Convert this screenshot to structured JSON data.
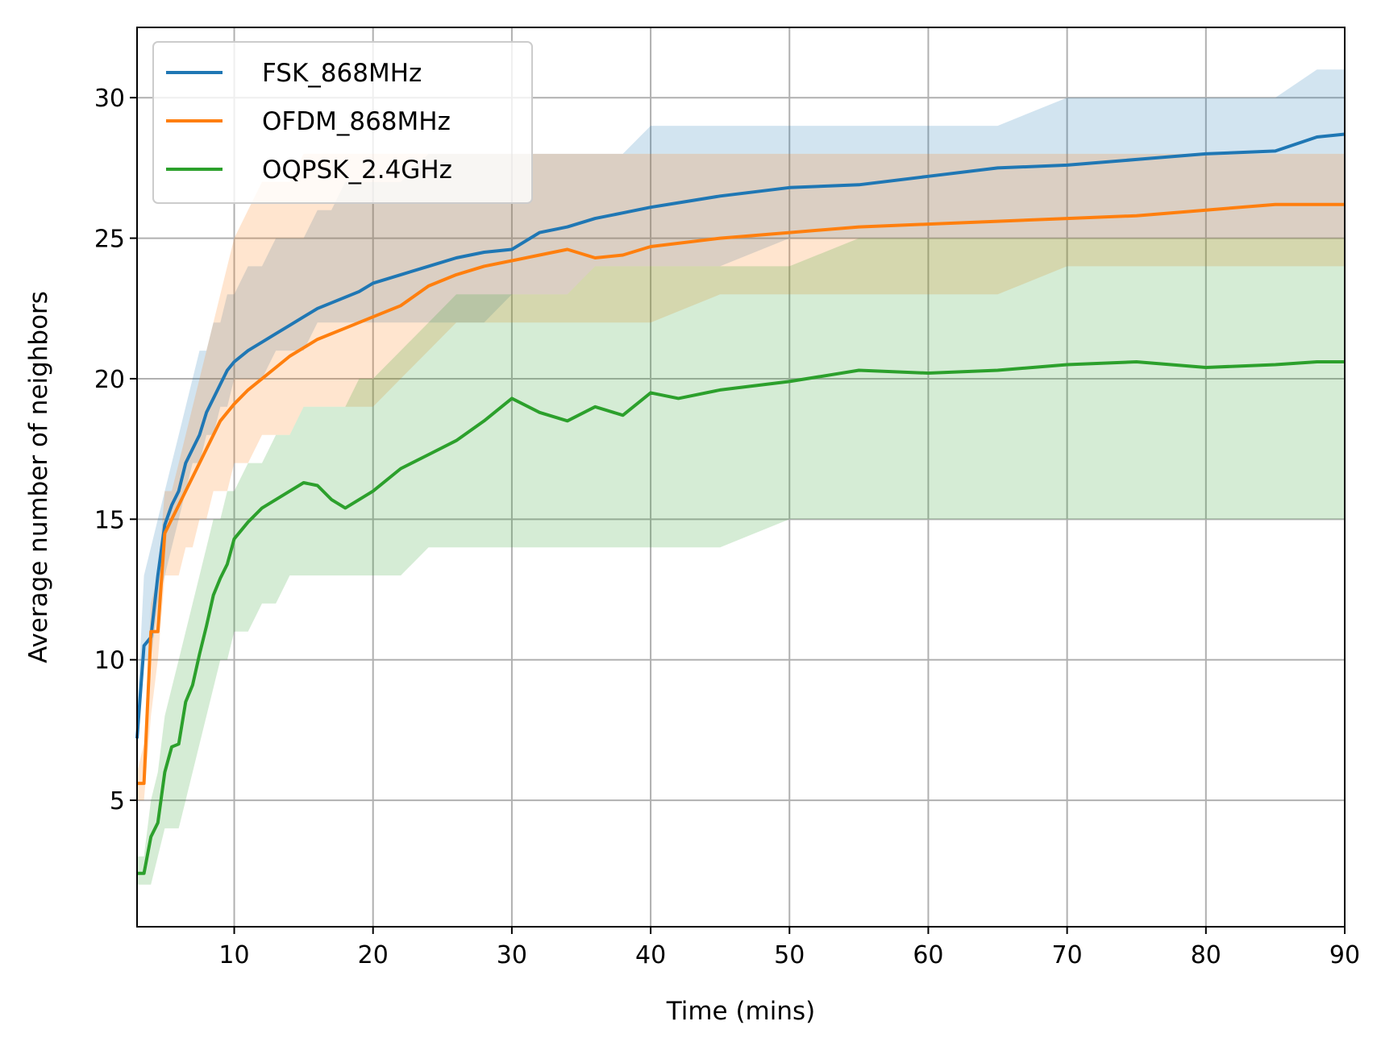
{
  "chart_data": {
    "type": "line",
    "xlabel": "Time (mins)",
    "ylabel": "Average number of neighbors",
    "xlim": [
      3,
      90
    ],
    "ylim": [
      0.5,
      32.5
    ],
    "xticks": [
      10,
      20,
      30,
      40,
      50,
      60,
      70,
      80,
      90
    ],
    "yticks": [
      5,
      10,
      15,
      20,
      25,
      30
    ],
    "grid": true,
    "legend_position": "upper-left",
    "series": [
      {
        "name": "FSK_868MHz",
        "color": "#1f77b4",
        "band_color": "#1f77b4",
        "x": [
          3,
          3.5,
          4,
          4.5,
          5,
          5.5,
          6,
          6.5,
          7,
          7.5,
          8,
          8.5,
          9,
          9.5,
          10,
          11,
          12,
          13,
          14,
          15,
          16,
          17,
          18,
          19,
          20,
          22,
          24,
          26,
          28,
          30,
          32,
          34,
          36,
          38,
          40,
          45,
          50,
          55,
          60,
          65,
          70,
          75,
          80,
          85,
          88,
          90
        ],
        "y": [
          7.2,
          10.5,
          10.8,
          13.0,
          14.8,
          15.5,
          16.0,
          17.0,
          17.5,
          18.0,
          18.8,
          19.3,
          19.8,
          20.3,
          20.6,
          21.0,
          21.3,
          21.6,
          21.9,
          22.2,
          22.5,
          22.7,
          22.9,
          23.1,
          23.4,
          23.7,
          24.0,
          24.3,
          24.5,
          24.6,
          25.2,
          25.4,
          25.7,
          25.9,
          26.1,
          26.5,
          26.8,
          26.9,
          27.2,
          27.5,
          27.6,
          27.8,
          28.0,
          28.1,
          28.6,
          28.7
        ],
        "lower": [
          7,
          10,
          10,
          12,
          13,
          14,
          15,
          16,
          17,
          17,
          18,
          18,
          19,
          19,
          20,
          20,
          20,
          21,
          21,
          21,
          22,
          22,
          22,
          22,
          22,
          22,
          22,
          22,
          22,
          23,
          23,
          23,
          24,
          24,
          24,
          24,
          25,
          25,
          25,
          25,
          25,
          25,
          25,
          25,
          25,
          25
        ],
        "upper": [
          8,
          13,
          14,
          15,
          16,
          17,
          18,
          19,
          20,
          21,
          21,
          22,
          22,
          23,
          23,
          24,
          24,
          25,
          25,
          25,
          26,
          26,
          27,
          27,
          27,
          27,
          28,
          28,
          28,
          28,
          28,
          28,
          28,
          28,
          29,
          29,
          29,
          29,
          29,
          29,
          30,
          30,
          30,
          30,
          31,
          31
        ]
      },
      {
        "name": "OFDM_868MHz",
        "color": "#ff7f0e",
        "band_color": "#ff7f0e",
        "x": [
          3,
          3.5,
          4,
          4.5,
          5,
          5.5,
          6,
          6.5,
          7,
          7.5,
          8,
          8.5,
          9,
          9.5,
          10,
          11,
          12,
          13,
          14,
          15,
          16,
          17,
          18,
          19,
          20,
          22,
          24,
          26,
          28,
          30,
          32,
          34,
          36,
          38,
          40,
          45,
          50,
          55,
          60,
          65,
          70,
          75,
          80,
          85,
          88,
          90
        ],
        "y": [
          5.6,
          5.6,
          11.0,
          11.0,
          14.5,
          15.0,
          15.5,
          16.0,
          16.5,
          17.0,
          17.5,
          18.0,
          18.5,
          18.8,
          19.1,
          19.6,
          20.0,
          20.4,
          20.8,
          21.1,
          21.4,
          21.6,
          21.8,
          22.0,
          22.2,
          22.6,
          23.3,
          23.7,
          24.0,
          24.2,
          24.4,
          24.6,
          24.3,
          24.4,
          24.7,
          25.0,
          25.2,
          25.4,
          25.5,
          25.6,
          25.7,
          25.8,
          26.0,
          26.2,
          26.2,
          26.2
        ],
        "lower": [
          5,
          5,
          8,
          10,
          13,
          13,
          13,
          14,
          14,
          15,
          15,
          16,
          16,
          16,
          17,
          17,
          18,
          18,
          18,
          19,
          19,
          19,
          19,
          19,
          19,
          20,
          21,
          22,
          22,
          22,
          22,
          22,
          22,
          22,
          22,
          23,
          23,
          23,
          23,
          23,
          24,
          24,
          24,
          24,
          24,
          24
        ],
        "upper": [
          6,
          7,
          12,
          13,
          16,
          16,
          17,
          18,
          19,
          20,
          21,
          22,
          23,
          24,
          25,
          26,
          27,
          27,
          27,
          28,
          28,
          28,
          28,
          28,
          28,
          28,
          28,
          28,
          28,
          28,
          28,
          28,
          28,
          28,
          28,
          28,
          28,
          28,
          28,
          28,
          28,
          28,
          28,
          28,
          28,
          28
        ]
      },
      {
        "name": "OQPSK_2.4GHz",
        "color": "#2ca02c",
        "band_color": "#2ca02c",
        "x": [
          3,
          3.5,
          4,
          4.5,
          5,
          5.5,
          6,
          6.5,
          7,
          7.5,
          8,
          8.5,
          9,
          9.5,
          10,
          11,
          12,
          13,
          14,
          15,
          16,
          17,
          18,
          19,
          20,
          22,
          24,
          26,
          28,
          30,
          32,
          34,
          36,
          38,
          40,
          42,
          45,
          50,
          55,
          60,
          65,
          70,
          75,
          80,
          85,
          88,
          90
        ],
        "y": [
          2.4,
          2.4,
          3.7,
          4.2,
          6.0,
          6.9,
          7.0,
          8.5,
          9.1,
          10.2,
          11.2,
          12.3,
          12.9,
          13.4,
          14.3,
          14.9,
          15.4,
          15.7,
          16.0,
          16.3,
          16.2,
          15.7,
          15.4,
          15.7,
          16.0,
          16.8,
          17.3,
          17.8,
          18.5,
          19.3,
          18.8,
          18.5,
          19.0,
          18.7,
          19.5,
          19.3,
          19.6,
          19.9,
          20.3,
          20.2,
          20.3,
          20.5,
          20.6,
          20.4,
          20.5,
          20.6,
          20.6
        ],
        "lower": [
          2,
          2,
          2,
          3,
          4,
          4,
          4,
          5,
          6,
          7,
          8,
          9,
          10,
          10,
          11,
          11,
          12,
          12,
          13,
          13,
          13,
          13,
          13,
          13,
          13,
          13,
          14,
          14,
          14,
          14,
          14,
          14,
          14,
          14,
          14,
          14,
          14,
          15,
          15,
          15,
          15,
          15,
          15,
          15,
          15,
          15,
          15
        ],
        "upper": [
          3,
          3,
          5,
          6,
          8,
          9,
          10,
          11,
          12,
          13,
          14,
          15,
          15,
          16,
          16,
          17,
          17,
          18,
          18,
          19,
          19,
          19,
          19,
          20,
          20,
          21,
          22,
          23,
          23,
          23,
          23,
          23,
          24,
          24,
          24,
          24,
          24,
          24,
          25,
          25,
          25,
          25,
          25,
          25,
          25,
          25,
          25
        ]
      }
    ]
  }
}
